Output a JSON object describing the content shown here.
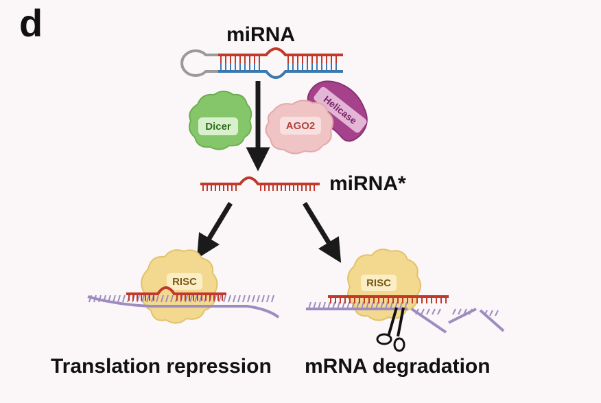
{
  "panel_letter": "d",
  "labels": {
    "mirna": "miRNA",
    "mirna_star": "miRNA*",
    "dicer": "Dicer",
    "ago2": "AGO2",
    "helicase": "Helicase",
    "risc_left": "RISC",
    "risc_right": "RISC",
    "outcome_left": "Translation repression",
    "outcome_right": "mRNA degradation"
  },
  "colors": {
    "background": "#fbf6f8",
    "mirna_strand": "#c0392b",
    "passenger_strand": "#3a78b0",
    "mrna": "#9c8cc0",
    "loop": "#9a9a9a",
    "dicer": "#86c66a",
    "ago2": "#f0c4c4",
    "helicase": "#a6428c",
    "risc": "#f3d98f",
    "arrow": "#1a1a1a"
  },
  "icons": [
    "scissors-icon"
  ]
}
